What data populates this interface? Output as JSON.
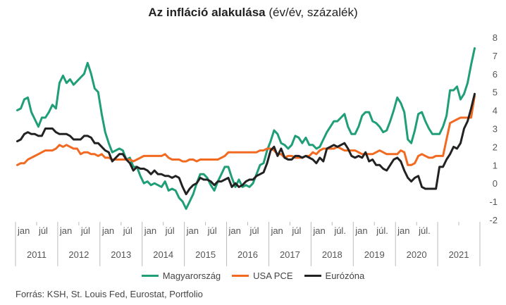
{
  "title_bold": "Az infláció alakulása",
  "title_rest": " (év/év, százalék)",
  "source": "Forrás: KSH, St. Louis Fed, Eurostat, Portfolio",
  "colors": {
    "hu": "#1f9e78",
    "us": "#f26a21",
    "ez": "#222222",
    "grid": "#bbbbbb"
  },
  "chart_data": {
    "type": "line",
    "ylim": [
      -2,
      8
    ],
    "yticks": [
      -2,
      -1,
      0,
      1,
      2,
      3,
      4,
      5,
      6,
      7,
      8
    ],
    "month_ticks": [
      "jan",
      "júl",
      "jan",
      "júl",
      "jan",
      "júl",
      "jan",
      "júl",
      "jan",
      "júl",
      "jan",
      "júl",
      "jan",
      "júl",
      "jan",
      "júl.",
      "jan",
      "júl.",
      "jan",
      "júl."
    ],
    "years": [
      "2011",
      "2012",
      "2013",
      "2014",
      "2015",
      "2016",
      "2017",
      "2018",
      "2019",
      "2020",
      "2021"
    ],
    "x_start": "2011-01",
    "series": [
      {
        "name": "Magyarország",
        "color_key": "hu",
        "values": [
          4.0,
          4.1,
          4.6,
          4.7,
          3.9,
          3.5,
          3.1,
          3.6,
          3.6,
          3.9,
          4.3,
          4.1,
          5.5,
          5.9,
          5.5,
          5.7,
          5.4,
          5.6,
          5.8,
          6.0,
          6.6,
          6.0,
          5.2,
          5.0,
          3.8,
          2.8,
          2.2,
          1.7,
          1.8,
          1.9,
          1.8,
          1.3,
          1.4,
          0.9,
          0.9,
          0.4,
          0.0,
          0.1,
          -0.1,
          0.0,
          -0.1,
          -0.2,
          0.1,
          -0.4,
          -0.3,
          -0.4,
          -0.8,
          -1.0,
          -1.4,
          -1.0,
          -0.6,
          0.0,
          0.5,
          0.5,
          0.3,
          -0.1,
          -0.4,
          0.1,
          0.5,
          0.9,
          0.9,
          0.3,
          -0.2,
          0.2,
          -0.2,
          -0.1,
          -0.2,
          0.0,
          0.5,
          1.0,
          1.1,
          1.8,
          2.3,
          2.9,
          2.7,
          2.2,
          2.1,
          1.9,
          2.1,
          2.6,
          2.5,
          2.2,
          2.5,
          2.1,
          2.1,
          1.9,
          2.0,
          2.4,
          2.8,
          3.1,
          3.4,
          3.4,
          3.6,
          3.8,
          3.1,
          2.7,
          2.7,
          3.1,
          3.7,
          3.9,
          3.9,
          3.4,
          3.3,
          3.1,
          2.8,
          2.9,
          3.4,
          4.0,
          4.7,
          4.4,
          3.9,
          2.4,
          2.2,
          2.9,
          3.8,
          3.9,
          3.4,
          3.0,
          2.7,
          2.7,
          2.7,
          3.1,
          3.7,
          5.1,
          5.1,
          5.3,
          4.6,
          4.9,
          5.5,
          6.5,
          7.4
        ]
      },
      {
        "name": "USA PCE",
        "color_key": "us",
        "values": [
          1.0,
          1.1,
          1.1,
          1.3,
          1.4,
          1.5,
          1.6,
          1.7,
          1.8,
          1.8,
          1.8,
          1.9,
          2.1,
          2.0,
          2.1,
          2.0,
          1.9,
          1.9,
          1.6,
          1.7,
          1.7,
          1.6,
          1.6,
          1.5,
          1.6,
          1.4,
          1.4,
          1.3,
          1.3,
          1.3,
          1.3,
          1.3,
          1.3,
          1.2,
          1.3,
          1.4,
          1.5,
          1.5,
          1.5,
          1.5,
          1.5,
          1.5,
          1.6,
          1.4,
          1.3,
          1.3,
          1.3,
          1.2,
          1.2,
          1.3,
          1.3,
          1.2,
          1.3,
          1.3,
          1.3,
          1.3,
          1.3,
          1.3,
          1.4,
          1.5,
          1.7,
          1.7,
          1.7,
          1.7,
          1.7,
          1.7,
          1.7,
          1.7,
          1.7,
          1.8,
          1.8,
          1.9,
          1.9,
          1.8,
          1.6,
          1.6,
          1.4,
          1.5,
          1.5,
          1.4,
          1.4,
          1.4,
          1.5,
          1.5,
          1.7,
          1.6,
          1.8,
          1.9,
          1.9,
          1.9,
          1.9,
          2.0,
          1.9,
          1.8,
          1.8,
          1.8,
          1.8,
          1.7,
          1.6,
          1.6,
          1.6,
          1.6,
          1.7,
          1.8,
          1.7,
          1.6,
          1.6,
          1.6,
          1.6,
          1.8,
          1.7,
          1.0,
          1.0,
          1.1,
          1.5,
          1.6,
          1.5,
          1.4,
          1.4,
          1.5,
          1.5,
          1.5,
          2.4,
          3.3,
          3.4,
          3.5,
          3.6,
          3.6,
          3.6,
          3.6,
          4.8
        ]
      },
      {
        "name": "Eurózóna",
        "color_key": "ez",
        "values": [
          2.3,
          2.4,
          2.7,
          2.8,
          2.7,
          2.7,
          2.6,
          2.6,
          3.0,
          3.0,
          3.0,
          2.8,
          2.7,
          2.7,
          2.7,
          2.6,
          2.4,
          2.4,
          2.4,
          2.6,
          2.6,
          2.5,
          2.2,
          2.2,
          2.0,
          1.8,
          1.7,
          1.2,
          1.4,
          1.6,
          1.6,
          1.3,
          1.1,
          0.7,
          0.9,
          0.8,
          0.8,
          0.7,
          0.5,
          0.7,
          0.5,
          0.5,
          0.4,
          0.4,
          0.3,
          0.4,
          0.3,
          -0.2,
          -0.6,
          -0.3,
          -0.1,
          0.0,
          0.3,
          0.2,
          0.2,
          0.1,
          -0.1,
          0.1,
          0.1,
          0.2,
          0.3,
          -0.2,
          0.0,
          -0.2,
          -0.1,
          0.1,
          0.2,
          0.2,
          0.4,
          0.5,
          0.6,
          1.1,
          1.8,
          2.0,
          1.5,
          1.9,
          1.4,
          1.3,
          1.3,
          1.5,
          1.5,
          1.4,
          1.5,
          1.4,
          1.3,
          1.1,
          1.4,
          1.2,
          1.9,
          2.0,
          2.1,
          2.0,
          2.1,
          2.2,
          1.9,
          1.5,
          1.4,
          1.5,
          1.4,
          1.7,
          1.2,
          1.3,
          1.0,
          1.0,
          0.8,
          0.7,
          1.0,
          1.3,
          1.4,
          1.2,
          0.7,
          0.3,
          0.1,
          0.3,
          0.4,
          -0.2,
          -0.3,
          -0.3,
          -0.3,
          -0.3,
          0.9,
          0.9,
          1.3,
          1.6,
          2.0,
          1.9,
          2.2,
          3.0,
          3.4,
          4.1,
          4.9
        ]
      }
    ]
  },
  "legend": [
    "Magyarország",
    "USA PCE",
    "Eurózóna"
  ]
}
